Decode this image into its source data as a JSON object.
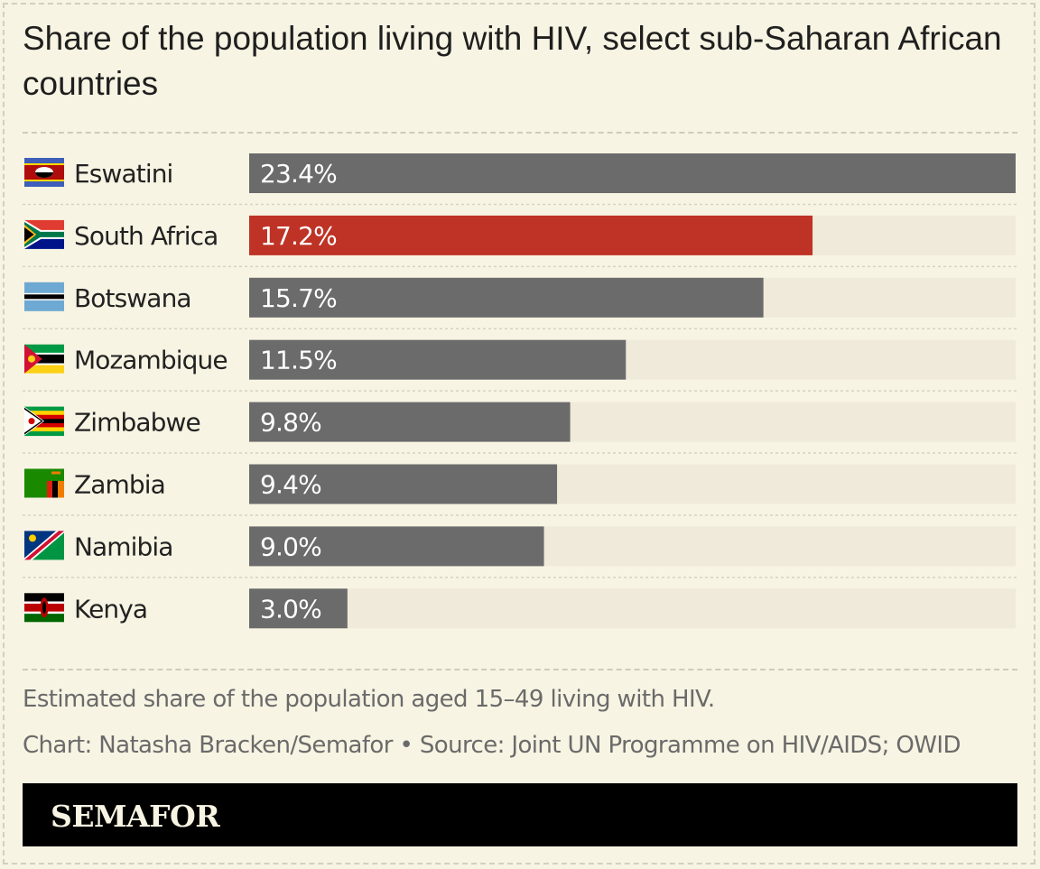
{
  "title": "Share of the population living with HIV, select sub-Saharan African countries",
  "chart_data": {
    "type": "bar",
    "orientation": "horizontal",
    "categories": [
      "Eswatini",
      "South Africa",
      "Botswana",
      "Mozambique",
      "Zimbabwe",
      "Zambia",
      "Namibia",
      "Kenya"
    ],
    "values": [
      23.4,
      17.2,
      15.7,
      11.5,
      9.8,
      9.4,
      9.0,
      3.0
    ],
    "value_labels": [
      "23.4%",
      "17.2%",
      "15.7%",
      "11.5%",
      "9.8%",
      "9.4%",
      "9.0%",
      "3.0%"
    ],
    "unit": "%",
    "xlim": [
      0,
      23.4
    ],
    "highlight_category": "South Africa",
    "grid": false,
    "colors": {
      "default_bar": "#6b6b6b",
      "highlight_bar": "#be3325",
      "track": "#efead9",
      "value_label": "#ffffff"
    },
    "flags": [
      "eswatini-flag-icon",
      "south-africa-flag-icon",
      "botswana-flag-icon",
      "mozambique-flag-icon",
      "zimbabwe-flag-icon",
      "zambia-flag-icon",
      "namibia-flag-icon",
      "kenya-flag-icon"
    ]
  },
  "notes": {
    "description": "Estimated share of the population aged 15–49 living with HIV.",
    "credit": "Chart: Natasha Bracken/Semafor • Source: Joint UN Programme on HIV/AIDS; OWID"
  },
  "brand": "SEMAFOR",
  "colors": {
    "background": "#f8f4e3",
    "brand_bar": "#000000"
  }
}
